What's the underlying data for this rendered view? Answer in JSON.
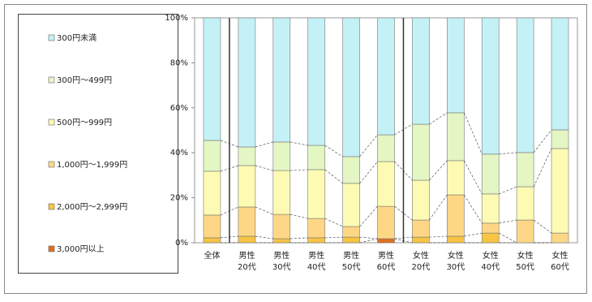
{
  "chart_data": {
    "type": "stacked-bar",
    "categories": [
      [
        "全体"
      ],
      [
        "男性",
        "20代"
      ],
      [
        "男性",
        "30代"
      ],
      [
        "男性",
        "40代"
      ],
      [
        "男性",
        "50代"
      ],
      [
        "男性",
        "60代"
      ],
      [
        "女性",
        "20代"
      ],
      [
        "女性",
        "30代"
      ],
      [
        "女性",
        "40代"
      ],
      [
        "女性",
        "50代"
      ],
      [
        "女性",
        "60代"
      ]
    ],
    "series": [
      {
        "name": "3,000円以上",
        "color": "#e0701e",
        "values": [
          0,
          0,
          0,
          0,
          0,
          1.8,
          0,
          0,
          0,
          0,
          0
        ]
      },
      {
        "name": "2,000円～2,999円",
        "color": "#f7c443",
        "values": [
          2.2,
          2.9,
          1.8,
          2.2,
          2.5,
          0,
          2.5,
          2.9,
          4.3,
          0,
          0
        ]
      },
      {
        "name": "1,000円～1,999円",
        "color": "#fdd785",
        "values": [
          10.1,
          13.0,
          10.8,
          8.6,
          4.7,
          14.4,
          7.6,
          18.4,
          4.4,
          10.1,
          4.3
        ]
      },
      {
        "name": "500円～999円",
        "color": "#fdfbb3",
        "values": [
          19.5,
          18.4,
          19.5,
          21.7,
          19.2,
          19.9,
          17.7,
          15.2,
          13.0,
          14.8,
          37.6
        ]
      },
      {
        "name": "300円～499円",
        "color": "#e3f6c3",
        "values": [
          13.7,
          8.3,
          12.7,
          10.8,
          11.9,
          11.9,
          24.9,
          21.3,
          17.7,
          15.2,
          8.3
        ]
      },
      {
        "name": "300円未満",
        "color": "#c4f1f6",
        "values": [
          54.5,
          57.4,
          55.2,
          56.7,
          61.7,
          52.0,
          47.3,
          42.2,
          60.6,
          59.9,
          49.8
        ]
      }
    ],
    "ylim": [
      0,
      100
    ],
    "yticks": [
      {
        "value": 0,
        "label": "0%"
      },
      {
        "value": 20,
        "label": "20%"
      },
      {
        "value": 40,
        "label": "40%"
      },
      {
        "value": 60,
        "label": "60%"
      },
      {
        "value": 80,
        "label": "80%"
      },
      {
        "value": 100,
        "label": "100%"
      }
    ],
    "legend": "left"
  }
}
